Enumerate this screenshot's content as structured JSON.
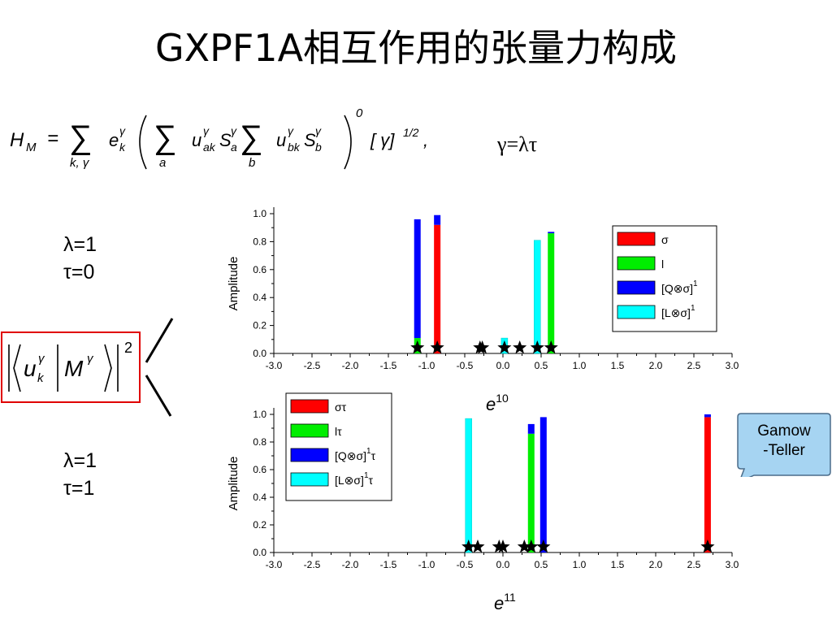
{
  "title": "GXPF1A相互作用的张量力构成",
  "formula": {
    "lhs": "H",
    "lhs_sub": "M",
    "eq": "=",
    "sum_sub1": "k, γ",
    "e": "e",
    "e_sup": "γ",
    "e_sub": "k",
    "sum_sub2": "a",
    "u": "u",
    "u_sup": "γ",
    "u_sub_a": "ak",
    "S": "S",
    "S_sup": "γ",
    "S_sub_a": "a",
    "sum_sub3": "b",
    "u_sub_b": "bk",
    "S_sub_b": "b",
    "zero": "0",
    "bracket": "[ γ]",
    "half": "1/2",
    "comma": ","
  },
  "gamma_eq": "γ=λτ",
  "param_top": {
    "lambda": "λ=1",
    "tau": "τ=0"
  },
  "param_bottom": {
    "lambda": "λ=1",
    "tau": "τ=1"
  },
  "matrix_element": {
    "u": "u",
    "u_sup": "γ",
    "u_sub": "k",
    "M": "M",
    "M_sup": "γ",
    "power": "2"
  },
  "callout": {
    "line1": "Gamow",
    "line2": "-Teller"
  },
  "colors": {
    "red": "#ff0000",
    "green": "#00ee00",
    "blue": "#0000ff",
    "cyan": "#00ffff"
  },
  "chart_data": [
    {
      "type": "bar",
      "stacked": true,
      "ylabel": "Amplitude",
      "xlabel_base": "e",
      "xlabel_sup": "10",
      "xlim": [
        -3.0,
        3.0
      ],
      "ylim": [
        0.0,
        1.0
      ],
      "xticks": [
        "-3.0",
        "-2.5",
        "-2.0",
        "-1.5",
        "-1.0",
        "-0.5",
        "0.0",
        "0.5",
        "1.0",
        "1.5",
        "2.0",
        "2.5",
        "3.0"
      ],
      "yticks": [
        "0.0",
        "0.2",
        "0.4",
        "0.6",
        "0.8",
        "1.0"
      ],
      "legend_position": "top-right",
      "legend": [
        {
          "label": "σ",
          "sup": "",
          "color": "red"
        },
        {
          "label": "l",
          "sup": "",
          "color": "green"
        },
        {
          "label": "[Q⊗σ]",
          "sup": "1",
          "color": "blue"
        },
        {
          "label": "[L⊗σ]",
          "sup": "1",
          "color": "cyan"
        }
      ],
      "bars": [
        {
          "x": -1.12,
          "segments": [
            {
              "color": "green",
              "value": 0.11
            },
            {
              "color": "blue",
              "value": 0.85
            }
          ]
        },
        {
          "x": -0.86,
          "segments": [
            {
              "color": "red",
              "value": 0.92
            },
            {
              "color": "blue",
              "value": 0.07
            }
          ]
        },
        {
          "x": 0.02,
          "segments": [
            {
              "color": "cyan",
              "value": 0.11
            }
          ]
        },
        {
          "x": 0.45,
          "segments": [
            {
              "color": "cyan",
              "value": 0.81
            }
          ]
        },
        {
          "x": 0.63,
          "segments": [
            {
              "color": "green",
              "value": 0.86
            },
            {
              "color": "blue",
              "value": 0.01
            }
          ]
        }
      ],
      "stars": [
        -1.12,
        -0.86,
        -0.3,
        -0.27,
        0.02,
        0.22,
        0.45,
        0.63
      ]
    },
    {
      "type": "bar",
      "stacked": true,
      "ylabel": "Amplitude",
      "xlabel_base": "e",
      "xlabel_sup": "11",
      "xlim": [
        -3.0,
        3.0
      ],
      "ylim": [
        0.0,
        1.0
      ],
      "xticks": [
        "-3.0",
        "-2.5",
        "-2.0",
        "-1.5",
        "-1.0",
        "-0.5",
        "0.0",
        "0.5",
        "1.0",
        "1.5",
        "2.0",
        "2.5",
        "3.0"
      ],
      "yticks": [
        "0.0",
        "0.2",
        "0.4",
        "0.6",
        "0.8",
        "1.0"
      ],
      "legend_position": "top-left",
      "legend": [
        {
          "label": "στ",
          "sup": "",
          "color": "red"
        },
        {
          "label": "lτ",
          "sup": "",
          "color": "green"
        },
        {
          "label": "[Q⊗σ]",
          "sup": "1",
          "after": "τ",
          "color": "blue"
        },
        {
          "label": "[L⊗σ]",
          "sup": "1",
          "after": "τ",
          "color": "cyan"
        }
      ],
      "bars": [
        {
          "x": -0.45,
          "segments": [
            {
              "color": "cyan",
              "value": 0.97
            }
          ]
        },
        {
          "x": 0.37,
          "segments": [
            {
              "color": "green",
              "value": 0.86
            },
            {
              "color": "blue",
              "value": 0.07
            }
          ]
        },
        {
          "x": 0.53,
          "segments": [
            {
              "color": "blue",
              "value": 0.98
            }
          ]
        },
        {
          "x": 2.68,
          "segments": [
            {
              "color": "red",
              "value": 0.98
            },
            {
              "color": "blue",
              "value": 0.02
            }
          ]
        }
      ],
      "stars": [
        -0.45,
        -0.33,
        -0.05,
        0.0,
        0.28,
        0.37,
        0.53,
        2.68
      ]
    }
  ]
}
